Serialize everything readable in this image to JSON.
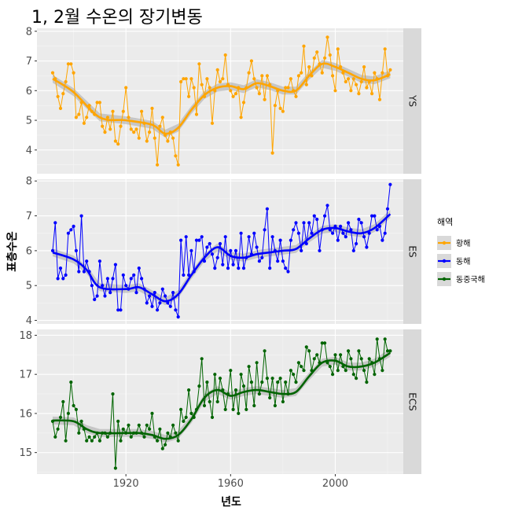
{
  "chart_data": {
    "type": "line",
    "title": "1, 2월 수온의 장기변동",
    "xlabel": "년도",
    "ylabel": "표층수온",
    "xlim": [
      1886,
      2026
    ],
    "x_ticks": [
      1920,
      1960,
      2000
    ],
    "grid": true,
    "legend": {
      "title": "해역",
      "placement": "right"
    },
    "series": [
      {
        "name": "황해",
        "facet": "YS",
        "color": "#FFA500",
        "ylim": [
          3.2,
          8.1
        ],
        "y_ticks": [
          4,
          5,
          6,
          7,
          8
        ],
        "x": [
          1892,
          1893,
          1894,
          1895,
          1896,
          1897,
          1898,
          1899,
          1900,
          1901,
          1902,
          1903,
          1904,
          1905,
          1906,
          1907,
          1908,
          1909,
          1910,
          1911,
          1912,
          1913,
          1914,
          1915,
          1916,
          1917,
          1918,
          1919,
          1920,
          1921,
          1922,
          1923,
          1924,
          1925,
          1926,
          1927,
          1928,
          1929,
          1930,
          1931,
          1932,
          1933,
          1934,
          1935,
          1936,
          1937,
          1938,
          1939,
          1940,
          1941,
          1942,
          1943,
          1944,
          1945,
          1946,
          1947,
          1948,
          1949,
          1950,
          1951,
          1952,
          1953,
          1954,
          1955,
          1956,
          1957,
          1958,
          1959,
          1960,
          1961,
          1962,
          1963,
          1964,
          1965,
          1966,
          1967,
          1968,
          1969,
          1970,
          1971,
          1972,
          1973,
          1974,
          1975,
          1976,
          1977,
          1978,
          1979,
          1980,
          1981,
          1982,
          1983,
          1984,
          1985,
          1986,
          1987,
          1988,
          1989,
          1990,
          1991,
          1992,
          1993,
          1994,
          1995,
          1996,
          1997,
          1998,
          1999,
          2000,
          2001,
          2002,
          2003,
          2004,
          2005,
          2006,
          2007,
          2008,
          2009,
          2010,
          2011,
          2012,
          2013,
          2014,
          2015,
          2016,
          2017,
          2018,
          2019,
          2020,
          2021
        ],
        "values": [
          6.6,
          6.4,
          5.8,
          5.4,
          5.9,
          6.3,
          6.9,
          6.9,
          6.6,
          5.1,
          5.2,
          5.6,
          4.9,
          5.1,
          5.5,
          5.3,
          5.2,
          5.6,
          5.6,
          4.8,
          4.6,
          5.1,
          4.7,
          5.3,
          4.3,
          4.2,
          4.8,
          5.3,
          6.1,
          5.1,
          4.7,
          4.6,
          4.7,
          4.4,
          5.3,
          4.9,
          4.3,
          4.6,
          5.4,
          4.4,
          3.5,
          4.8,
          5.1,
          4.5,
          4.3,
          4.6,
          4.4,
          3.8,
          3.5,
          6.3,
          6.4,
          6.4,
          5.8,
          6.4,
          6.1,
          5.2,
          6.9,
          6.2,
          5.8,
          6.4,
          6.1,
          4.9,
          6.0,
          6.7,
          6.3,
          6.4,
          7.2,
          6.2,
          6.0,
          5.8,
          5.9,
          6.1,
          5.1,
          5.6,
          6.1,
          6.6,
          7.0,
          6.4,
          6.1,
          5.9,
          6.5,
          5.7,
          6.5,
          6.2,
          3.9,
          5.5,
          6.0,
          5.4,
          5.3,
          6.1,
          6.1,
          6.4,
          6.0,
          5.8,
          6.5,
          6.6,
          7.5,
          6.2,
          6.8,
          6.5,
          7.1,
          7.3,
          6.9,
          6.6,
          7.1,
          7.8,
          7.2,
          6.5,
          6.0,
          7.4,
          6.8,
          6.6,
          6.3,
          6.4,
          6.0,
          6.4,
          6.2,
          5.9,
          6.3,
          6.8,
          6.1,
          6.3,
          5.9,
          6.6,
          6.4,
          5.7,
          6.6,
          7.4,
          6.5,
          6.7
        ],
        "smooth": [
          [
            1892,
            6.4
          ],
          [
            1900,
            5.95
          ],
          [
            1910,
            5.1
          ],
          [
            1920,
            5.0
          ],
          [
            1930,
            4.85
          ],
          [
            1935,
            4.55
          ],
          [
            1940,
            4.75
          ],
          [
            1945,
            5.35
          ],
          [
            1950,
            5.85
          ],
          [
            1955,
            6.1
          ],
          [
            1960,
            6.15
          ],
          [
            1965,
            6.05
          ],
          [
            1970,
            6.25
          ],
          [
            1975,
            6.15
          ],
          [
            1980,
            6.0
          ],
          [
            1985,
            6.0
          ],
          [
            1990,
            6.5
          ],
          [
            1995,
            6.9
          ],
          [
            2000,
            6.8
          ],
          [
            2005,
            6.6
          ],
          [
            2010,
            6.4
          ],
          [
            2015,
            6.35
          ],
          [
            2021,
            6.55
          ]
        ]
      },
      {
        "name": "동해",
        "facet": "ES",
        "color": "#0000FF",
        "ylim": [
          3.9,
          8.05
        ],
        "y_ticks": [
          4,
          5,
          6,
          7,
          8
        ],
        "x": [
          1892,
          1893,
          1894,
          1895,
          1896,
          1897,
          1898,
          1899,
          1900,
          1901,
          1902,
          1903,
          1904,
          1905,
          1906,
          1907,
          1908,
          1909,
          1910,
          1911,
          1912,
          1913,
          1914,
          1915,
          1916,
          1917,
          1918,
          1919,
          1920,
          1921,
          1922,
          1923,
          1924,
          1925,
          1926,
          1927,
          1928,
          1929,
          1930,
          1931,
          1932,
          1933,
          1934,
          1935,
          1936,
          1937,
          1938,
          1939,
          1940,
          1941,
          1942,
          1943,
          1944,
          1945,
          1946,
          1947,
          1948,
          1949,
          1950,
          1951,
          1952,
          1953,
          1954,
          1955,
          1956,
          1957,
          1958,
          1959,
          1960,
          1961,
          1962,
          1963,
          1964,
          1965,
          1966,
          1967,
          1968,
          1969,
          1970,
          1971,
          1972,
          1973,
          1974,
          1975,
          1976,
          1977,
          1978,
          1979,
          1980,
          1981,
          1982,
          1983,
          1984,
          1985,
          1986,
          1987,
          1988,
          1989,
          1990,
          1991,
          1992,
          1993,
          1994,
          1995,
          1996,
          1997,
          1998,
          1999,
          2000,
          2001,
          2002,
          2003,
          2004,
          2005,
          2006,
          2007,
          2008,
          2009,
          2010,
          2011,
          2012,
          2013,
          2014,
          2015,
          2016,
          2017,
          2018,
          2019,
          2020,
          2021
        ],
        "values": [
          6.0,
          6.8,
          5.2,
          5.5,
          5.2,
          5.3,
          6.5,
          6.6,
          6.7,
          6.0,
          5.4,
          7.0,
          5.4,
          5.7,
          5.4,
          5.0,
          4.6,
          4.7,
          5.7,
          5.0,
          4.7,
          5.2,
          4.8,
          5.2,
          5.6,
          4.3,
          4.3,
          5.3,
          5.0,
          4.9,
          5.2,
          5.3,
          4.8,
          5.5,
          5.2,
          4.9,
          4.5,
          4.7,
          4.4,
          4.8,
          4.3,
          4.5,
          4.9,
          4.7,
          4.5,
          4.4,
          4.8,
          4.3,
          4.1,
          6.3,
          5.3,
          6.4,
          5.3,
          6.0,
          5.4,
          6.3,
          6.3,
          6.4,
          5.7,
          6.1,
          6.2,
          5.9,
          5.5,
          5.8,
          6.2,
          5.6,
          6.4,
          5.5,
          6.0,
          5.6,
          6.0,
          5.5,
          6.5,
          5.5,
          5.8,
          6.4,
          5.9,
          6.5,
          6.1,
          5.7,
          5.8,
          6.6,
          7.2,
          5.5,
          6.4,
          6.0,
          5.7,
          6.3,
          5.7,
          5.5,
          5.4,
          6.3,
          6.6,
          6.8,
          6.5,
          6.0,
          6.8,
          6.2,
          6.8,
          6.5,
          7.0,
          6.9,
          6.0,
          6.6,
          7.0,
          7.3,
          6.6,
          6.5,
          6.7,
          6.3,
          6.7,
          6.5,
          6.4,
          6.8,
          6.6,
          6.0,
          6.2,
          6.9,
          6.8,
          6.4,
          6.1,
          6.5,
          7.0,
          7.0,
          6.6,
          6.7,
          6.3,
          6.5,
          7.2,
          7.9
        ],
        "smooth": [
          [
            1892,
            5.95
          ],
          [
            1900,
            5.75
          ],
          [
            1905,
            5.45
          ],
          [
            1910,
            4.95
          ],
          [
            1920,
            4.9
          ],
          [
            1925,
            4.95
          ],
          [
            1930,
            4.75
          ],
          [
            1935,
            4.55
          ],
          [
            1940,
            4.75
          ],
          [
            1945,
            5.3
          ],
          [
            1950,
            5.8
          ],
          [
            1955,
            6.1
          ],
          [
            1960,
            5.85
          ],
          [
            1965,
            5.8
          ],
          [
            1970,
            5.9
          ],
          [
            1975,
            5.95
          ],
          [
            1980,
            6.0
          ],
          [
            1985,
            6.05
          ],
          [
            1990,
            6.35
          ],
          [
            1995,
            6.6
          ],
          [
            2000,
            6.65
          ],
          [
            2005,
            6.55
          ],
          [
            2010,
            6.5
          ],
          [
            2015,
            6.65
          ],
          [
            2021,
            7.05
          ]
        ]
      },
      {
        "name": "동중국해",
        "facet": "ECS",
        "color": "#006400",
        "ylim": [
          14.45,
          18.15
        ],
        "y_ticks": [
          15,
          16,
          17,
          18
        ],
        "x": [
          1892,
          1893,
          1894,
          1895,
          1896,
          1897,
          1898,
          1899,
          1900,
          1901,
          1902,
          1903,
          1904,
          1905,
          1906,
          1907,
          1908,
          1909,
          1910,
          1911,
          1912,
          1913,
          1914,
          1915,
          1916,
          1917,
          1918,
          1919,
          1920,
          1921,
          1922,
          1923,
          1924,
          1925,
          1926,
          1927,
          1928,
          1929,
          1930,
          1931,
          1932,
          1933,
          1934,
          1935,
          1936,
          1937,
          1938,
          1939,
          1940,
          1941,
          1942,
          1943,
          1944,
          1945,
          1946,
          1947,
          1948,
          1949,
          1950,
          1951,
          1952,
          1953,
          1954,
          1955,
          1956,
          1957,
          1958,
          1959,
          1960,
          1961,
          1962,
          1963,
          1964,
          1965,
          1966,
          1967,
          1968,
          1969,
          1970,
          1971,
          1972,
          1973,
          1974,
          1975,
          1976,
          1977,
          1978,
          1979,
          1980,
          1981,
          1982,
          1983,
          1984,
          1985,
          1986,
          1987,
          1988,
          1989,
          1990,
          1991,
          1992,
          1993,
          1994,
          1995,
          1996,
          1997,
          1998,
          1999,
          2000,
          2001,
          2002,
          2003,
          2004,
          2005,
          2006,
          2007,
          2008,
          2009,
          2010,
          2011,
          2012,
          2013,
          2014,
          2015,
          2016,
          2017,
          2018,
          2019,
          2020,
          2021
        ],
        "values": [
          15.8,
          15.4,
          15.6,
          15.9,
          16.3,
          15.3,
          16.0,
          16.8,
          16.2,
          16.1,
          15.5,
          15.8,
          15.6,
          15.3,
          15.4,
          15.3,
          15.4,
          15.5,
          15.3,
          15.5,
          15.5,
          15.4,
          15.5,
          16.5,
          14.6,
          15.8,
          15.3,
          15.6,
          15.5,
          15.7,
          15.4,
          15.5,
          15.5,
          15.7,
          15.5,
          15.4,
          15.7,
          15.6,
          16.0,
          15.4,
          15.3,
          15.6,
          15.1,
          15.2,
          15.5,
          15.4,
          15.7,
          15.5,
          15.3,
          16.1,
          15.8,
          15.9,
          16.6,
          16.0,
          15.9,
          16.1,
          16.7,
          17.4,
          16.2,
          16.8,
          16.3,
          15.9,
          17.0,
          16.3,
          16.9,
          16.6,
          16.1,
          16.5,
          17.1,
          16.1,
          16.6,
          16.0,
          17.0,
          16.7,
          16.1,
          17.2,
          16.8,
          16.2,
          17.3,
          16.5,
          16.8,
          17.6,
          16.9,
          16.4,
          16.9,
          16.2,
          16.8,
          16.9,
          16.3,
          16.8,
          16.5,
          17.1,
          17.0,
          16.8,
          17.3,
          17.2,
          17.1,
          17.7,
          17.6,
          17.1,
          17.4,
          17.5,
          17.3,
          17.8,
          17.8,
          17.3,
          17.2,
          17.0,
          17.5,
          17.1,
          17.5,
          17.2,
          17.1,
          17.6,
          17.4,
          17.0,
          16.9,
          17.6,
          17.4,
          17.1,
          16.8,
          17.4,
          17.3,
          17.0,
          17.9,
          17.4,
          17.1,
          17.9,
          17.6,
          17.6
        ],
        "smooth": [
          [
            1892,
            15.82
          ],
          [
            1900,
            15.8
          ],
          [
            1905,
            15.6
          ],
          [
            1910,
            15.5
          ],
          [
            1920,
            15.5
          ],
          [
            1925,
            15.5
          ],
          [
            1930,
            15.45
          ],
          [
            1935,
            15.35
          ],
          [
            1940,
            15.45
          ],
          [
            1945,
            15.85
          ],
          [
            1950,
            16.4
          ],
          [
            1955,
            16.6
          ],
          [
            1960,
            16.45
          ],
          [
            1965,
            16.55
          ],
          [
            1970,
            16.6
          ],
          [
            1975,
            16.55
          ],
          [
            1980,
            16.5
          ],
          [
            1985,
            16.55
          ],
          [
            1990,
            16.95
          ],
          [
            1995,
            17.3
          ],
          [
            2000,
            17.35
          ],
          [
            2005,
            17.2
          ],
          [
            2010,
            17.2
          ],
          [
            2015,
            17.3
          ],
          [
            2021,
            17.55
          ]
        ]
      }
    ]
  }
}
